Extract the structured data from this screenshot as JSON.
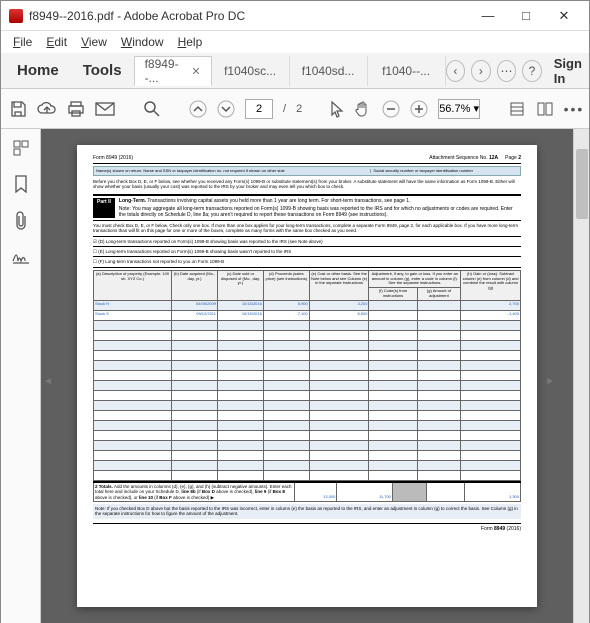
{
  "window": {
    "title": "f8949--2016.pdf - Adobe Acrobat Pro DC",
    "min": "—",
    "max": "□",
    "close": "✕"
  },
  "menu": {
    "file": "File",
    "edit": "Edit",
    "view": "View",
    "window": "Window",
    "help": "Help"
  },
  "tabs": {
    "home": "Home",
    "tools": "Tools",
    "t1": "f8949--...",
    "t2": "f1040sc...",
    "t3": "f1040sd...",
    "t4": "f1040--...",
    "signin": "Sign In"
  },
  "toolbar": {
    "page_current": "2",
    "page_sep": "/",
    "page_total": "2",
    "zoom": "56.7%",
    "zoom_caret": "▾",
    "dots": "•••"
  },
  "form": {
    "header_left": "Form 8949 (2016)",
    "header_right_seq": "Attachment Sequence No. ",
    "header_right_seqno": "12A",
    "header_right_page": "Page ",
    "header_right_pageno": "2",
    "bluehdr_left": "Name(s) shown on return. Name and SSN or taxpayer identification no. not required if shown on other side",
    "bluehdr_right": "Social security number or taxpayer identification number",
    "intro": "Before you check Box D, E, or F below, see whether you received any Form(s) 1099-B or substitute statement(s) from your broker. A substitute statement will have the same information as Form 1099-B. Either will show whether your basis (usually your cost) was reported to the IRS by your broker and may even tell you which box to check.",
    "part2_label": "Part II",
    "part2_title": "Long-Term. Transactions involving capital assets you held more than 1 year are long term. For short-term transactions, see page 1.",
    "part2_note": "Note: You may aggregate all long-term transactions reported on Form(s) 1099-B showing basis was reported to the IRS and for which no adjustments or codes are required. Enter the totals directly on Schedule D, line 8a; you aren't required to report these transactions on Form 8949 (see instructions).",
    "mustcheck": "You must check Box D, E, or F below. Check only one box. If more than one box applies for your long-term transactions, complete a separate Form 8949, page 2, for each applicable box. If you have more long-term transactions than will fit on this page for one or more of the boxes, complete as many forms with the same box checked as you need.",
    "boxD": "(D) Long-term transactions reported on Form(s) 1099-B showing basis was reported to the IRS (see Note above)",
    "boxE": "(E) Long-term transactions reported on Form(s) 1099-B showing basis wasn't reported to the IRS",
    "boxF": "(F) Long-term transactions not reported to you on Form 1099-B",
    "cols": {
      "a": "(a)\nDescription of property\n(Example: 100 sh. XYZ Co.)",
      "b": "(b)\nDate acquired\n(Mo., day, yr.)",
      "c": "(c)\nDate sold or disposed of\n(Mo., day, yr.)",
      "d": "(d)\nProceeds\n(sales price)\n(see instructions)",
      "e": "(e)\nCost or other basis. See the Note below and see Column (e) in the separate instructions",
      "fg": "Adjustment, if any, to gain or loss. If you enter an amount in column (g), enter a code in column (f). See the separate instructions.",
      "f": "(f)\nCode(s) from instructions",
      "g": "(g)\nAmount of adjustment",
      "h": "(h)\nGain or (loss). Subtract column (e) from column (d) and combine the result with column (g)"
    },
    "rows": [
      {
        "a": "Stock H",
        "b": "04/05/2009",
        "c": "10/15/2016",
        "d": "5,900",
        "e": "3,200",
        "f": "",
        "g": "",
        "h": "2,700"
      },
      {
        "a": "Stock S",
        "b": "09/12/2011",
        "c": "10/15/2016",
        "d": "7,100",
        "e": "8,500",
        "f": "",
        "g": "",
        "h": "-1,400"
      }
    ],
    "totals_label": "2 Totals. Add the amounts in columns (d), (e), (g), and (h) (subtract negative amounts). Enter each total here and include on your Schedule D, line 8b (if Box D above is checked), line 9 (if Box E above is checked), or line 10 (if Box F above is checked) ▶",
    "totals_d": "13,000",
    "totals_e": "11,700",
    "totals_g": "",
    "totals_h": "1,300",
    "note_bottom": "Note: If you checked Box D above but the basis reported to the IRS was incorrect, enter in column (e) the basis as reported to the IRS, and enter an adjustment in column (g) to correct the basis. See Column (g) in the separate instructions for how to figure the amount of the adjustment.",
    "footer": "Form 8949 (2016)"
  }
}
